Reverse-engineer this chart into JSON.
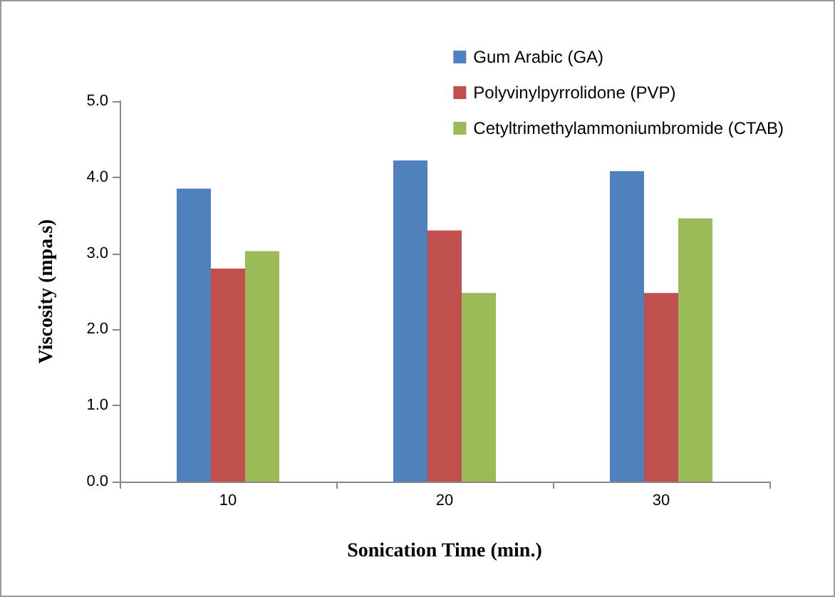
{
  "chart_data": {
    "type": "bar",
    "xlabel": "Sonication Time (min.)",
    "ylabel": "Viscosity (mpa.s)",
    "categories": [
      "10",
      "20",
      "30"
    ],
    "series": [
      {
        "name": "Gum Arabic (GA)",
        "color": "#4f81bd",
        "values": [
          3.85,
          4.22,
          4.08
        ]
      },
      {
        "name": "Polyvinylpyrrolidone (PVP)",
        "color": "#c0504d",
        "values": [
          2.8,
          3.3,
          2.48
        ]
      },
      {
        "name": "Cetyltrimethylammoniumbromide (CTAB)",
        "color": "#9bbb59",
        "values": [
          3.03,
          2.48,
          3.46
        ]
      }
    ],
    "ylim": [
      0,
      5
    ],
    "yticks": [
      {
        "value": 0,
        "label": "0.0"
      },
      {
        "value": 1,
        "label": "1.0"
      },
      {
        "value": 2,
        "label": "2.0"
      },
      {
        "value": 3,
        "label": "3.0"
      },
      {
        "value": 4,
        "label": "4.0"
      },
      {
        "value": 5,
        "label": "5.0"
      }
    ],
    "grid": false,
    "legend": "top right"
  }
}
